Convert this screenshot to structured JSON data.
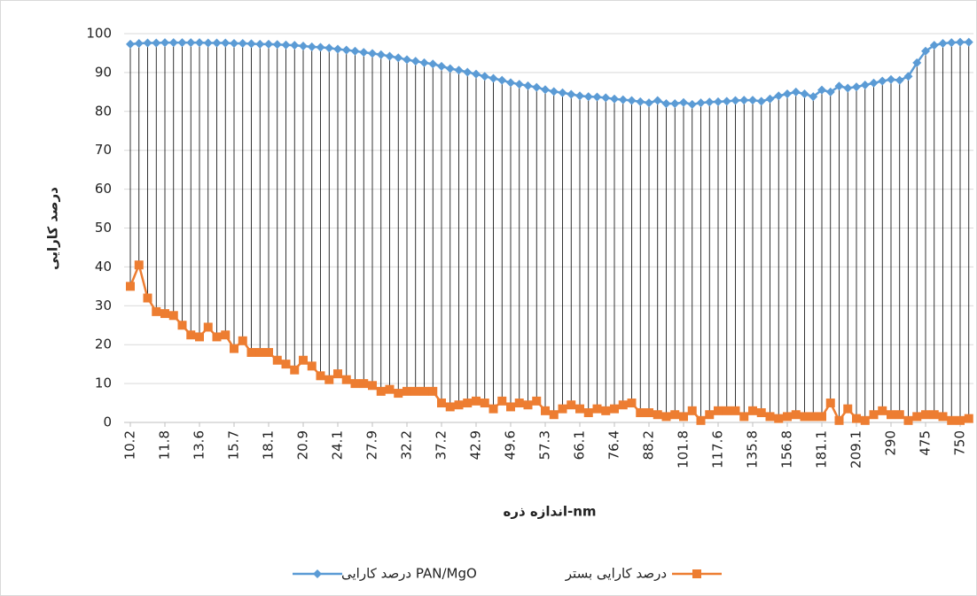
{
  "chart_data": {
    "type": "line",
    "ylabel": "درصد کارایی",
    "xlabel": "اندازه ذره-nm",
    "categories": [
      "10.2",
      null,
      null,
      null,
      "11.8",
      null,
      null,
      null,
      "13.6",
      null,
      null,
      null,
      "15.7",
      null,
      null,
      null,
      "18.1",
      null,
      null,
      null,
      "20.9",
      null,
      null,
      null,
      "24.1",
      null,
      null,
      null,
      "27.9",
      null,
      null,
      null,
      "32.2",
      null,
      null,
      null,
      "37.2",
      null,
      null,
      null,
      "42.9",
      null,
      null,
      null,
      "49.6",
      null,
      null,
      null,
      "57.3",
      null,
      null,
      null,
      "66.1",
      null,
      null,
      null,
      "76.4",
      null,
      null,
      null,
      "88.2",
      null,
      null,
      null,
      "101.8",
      null,
      null,
      null,
      "117.6",
      null,
      null,
      null,
      "135.8",
      null,
      null,
      null,
      "156.8",
      null,
      null,
      null,
      "181.1",
      null,
      null,
      null,
      "209.1",
      null,
      null,
      null,
      "290",
      null,
      null,
      null,
      "475",
      null,
      null,
      null,
      "750",
      null
    ],
    "series": [
      {
        "name": "درصد کارایی PAN/MgO",
        "color": "#5b9bd5",
        "marker": "diamond",
        "values": [
          97.3,
          97.5,
          97.6,
          97.6,
          97.7,
          97.7,
          97.7,
          97.7,
          97.7,
          97.6,
          97.6,
          97.6,
          97.5,
          97.5,
          97.4,
          97.3,
          97.3,
          97.2,
          97.1,
          97.0,
          96.8,
          96.6,
          96.5,
          96.3,
          96.0,
          95.8,
          95.5,
          95.2,
          94.9,
          94.6,
          94.2,
          93.8,
          93.3,
          92.9,
          92.5,
          92.2,
          91.6,
          91.0,
          90.6,
          90.1,
          89.6,
          89.0,
          88.5,
          88.0,
          87.4,
          87.0,
          86.6,
          86.2,
          85.6,
          85.1,
          84.8,
          84.4,
          84.0,
          83.8,
          83.7,
          83.5,
          83.2,
          83.0,
          82.8,
          82.5,
          82.2,
          82.8,
          82.0,
          82.0,
          82.3,
          81.8,
          82.2,
          82.4,
          82.5,
          82.6,
          82.8,
          82.9,
          82.9,
          82.6,
          83.2,
          84.0,
          84.5,
          85.0,
          84.5,
          83.8,
          85.5,
          85.0,
          86.5,
          86.0,
          86.3,
          86.8,
          87.3,
          87.8,
          88.2,
          88.0,
          89.0,
          92.5,
          95.5,
          97.0,
          97.5,
          97.7,
          97.8,
          97.8
        ]
      },
      {
        "name": "درصد کارایی بستر",
        "color": "#ed7d31",
        "marker": "square",
        "values": [
          35,
          40.5,
          32,
          28.5,
          28,
          27.5,
          25,
          22.5,
          22,
          24.5,
          22,
          22.5,
          19,
          21,
          18,
          18,
          18,
          16,
          15,
          13.5,
          16,
          14.5,
          12,
          11,
          12.5,
          11,
          10,
          10,
          9.5,
          8,
          8.5,
          7.5,
          8,
          8,
          8,
          8,
          5,
          4,
          4.5,
          5,
          5.5,
          5,
          3.5,
          5.5,
          4,
          5,
          4.5,
          5.5,
          3,
          2,
          3.5,
          4.5,
          3.5,
          2.5,
          3.5,
          3,
          3.5,
          4.5,
          5,
          2.5,
          2.5,
          2,
          1.5,
          2,
          1.5,
          3,
          0.5,
          2,
          3,
          3,
          3,
          1.5,
          3,
          2.5,
          1.5,
          1,
          1.5,
          2,
          1.5,
          1.5,
          1.5,
          5,
          0.5,
          3.5,
          1,
          0.5,
          2,
          3,
          2,
          2,
          0.5,
          1.5,
          2,
          2,
          1.5,
          0.5,
          0.5,
          1
        ]
      }
    ],
    "ylim": [
      0,
      100
    ],
    "yticks": [
      0,
      10,
      20,
      30,
      40,
      50,
      60,
      70,
      80,
      90,
      100
    ],
    "grid": true,
    "high_low_lines": true
  }
}
